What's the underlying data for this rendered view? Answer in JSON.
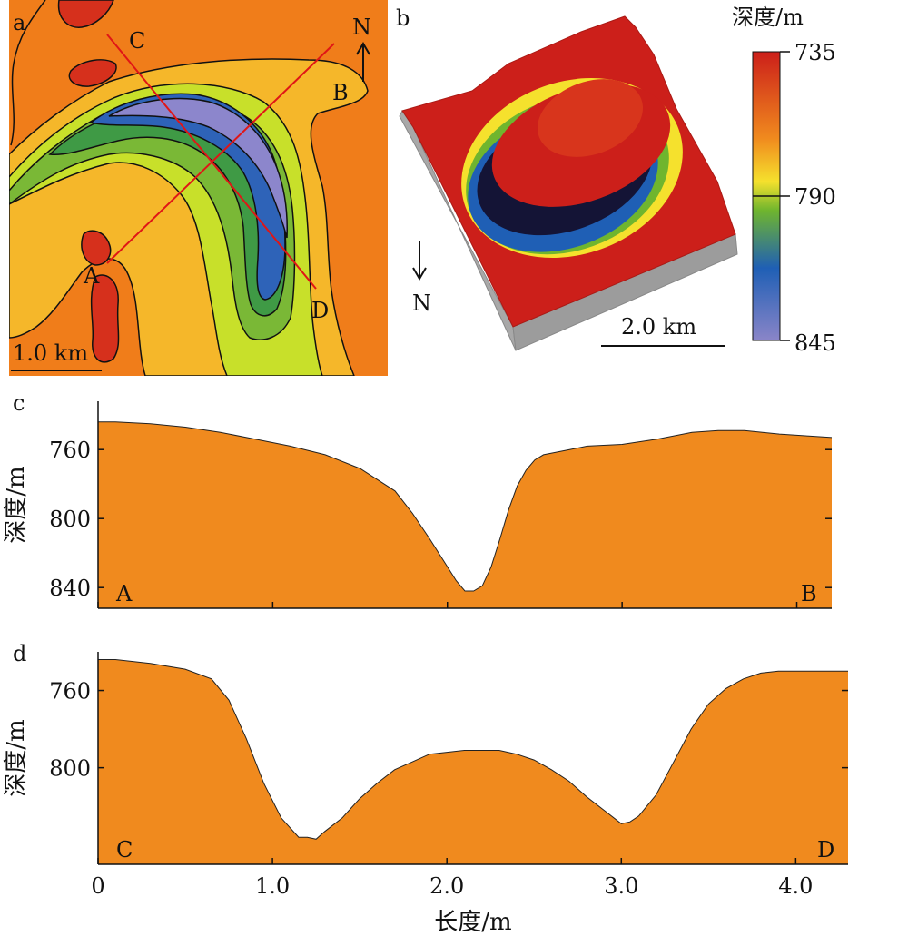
{
  "panels": {
    "a": {
      "letter": "a",
      "labels": {
        "A": "A",
        "B": "B",
        "C": "C",
        "D": "D",
        "north": "N"
      },
      "scale_bar": "1.0 km"
    },
    "b": {
      "letter": "b",
      "north": "N",
      "scale_bar": "2.0 km",
      "colorbar": {
        "title": "深度/m",
        "ticks": [
          "735",
          "790",
          "845"
        ],
        "colors": [
          "#cc1f1a",
          "#f08a1e",
          "#f5e12d",
          "#6fb52e",
          "#1f5fb5",
          "#8a85c8"
        ]
      }
    }
  },
  "chart_data": [
    {
      "type": "area",
      "panel": "c",
      "ylabel": "深度/m",
      "y_ticks": [
        "760",
        "800",
        "840"
      ],
      "ylim": [
        732,
        852
      ],
      "y_inverted": true,
      "xlim": [
        0,
        4.2
      ],
      "x_ticks": [
        "",
        "",
        "",
        "",
        ""
      ],
      "start_label": "A",
      "end_label": "B",
      "fill_color": "#f08a1e",
      "x": [
        0,
        0.1,
        0.3,
        0.5,
        0.7,
        0.9,
        1.1,
        1.3,
        1.5,
        1.7,
        1.8,
        1.9,
        2.0,
        2.05,
        2.1,
        2.15,
        2.2,
        2.25,
        2.3,
        2.35,
        2.4,
        2.45,
        2.5,
        2.55,
        2.6,
        2.7,
        2.8,
        3.0,
        3.2,
        3.4,
        3.55,
        3.7,
        3.9,
        4.05,
        4.2
      ],
      "y": [
        744,
        744,
        745,
        747,
        750,
        754,
        758,
        763,
        771,
        784,
        797,
        812,
        828,
        836,
        842,
        842,
        839,
        828,
        812,
        795,
        781,
        772,
        766,
        763,
        762,
        760,
        758,
        757,
        754,
        750,
        749,
        749,
        751,
        752,
        753
      ]
    },
    {
      "type": "area",
      "panel": "d",
      "ylabel": "深度/m",
      "y_ticks": [
        "760",
        "800"
      ],
      "ylim": [
        740,
        850
      ],
      "y_inverted": true,
      "xlim": [
        0,
        4.3
      ],
      "x_ticks": [
        "0",
        "1.0",
        "2.0",
        "3.0",
        "4.0"
      ],
      "xlabel": "长度/m",
      "start_label": "C",
      "end_label": "D",
      "fill_color": "#f08a1e",
      "x": [
        0,
        0.1,
        0.3,
        0.5,
        0.65,
        0.75,
        0.85,
        0.95,
        1.05,
        1.15,
        1.2,
        1.25,
        1.3,
        1.4,
        1.5,
        1.6,
        1.7,
        1.8,
        1.9,
        2.0,
        2.1,
        2.2,
        2.3,
        2.4,
        2.5,
        2.6,
        2.7,
        2.8,
        2.9,
        3.0,
        3.05,
        3.1,
        3.2,
        3.3,
        3.4,
        3.5,
        3.6,
        3.7,
        3.8,
        3.9,
        4.05,
        4.3
      ],
      "y": [
        744,
        744,
        746,
        749,
        754,
        765,
        785,
        808,
        826,
        836,
        836,
        837,
        833,
        826,
        816,
        808,
        801,
        797,
        793,
        792,
        791,
        791,
        791,
        793,
        796,
        801,
        807,
        815,
        822,
        829,
        828,
        825,
        814,
        797,
        780,
        767,
        759,
        754,
        751,
        750,
        750,
        750
      ]
    }
  ]
}
